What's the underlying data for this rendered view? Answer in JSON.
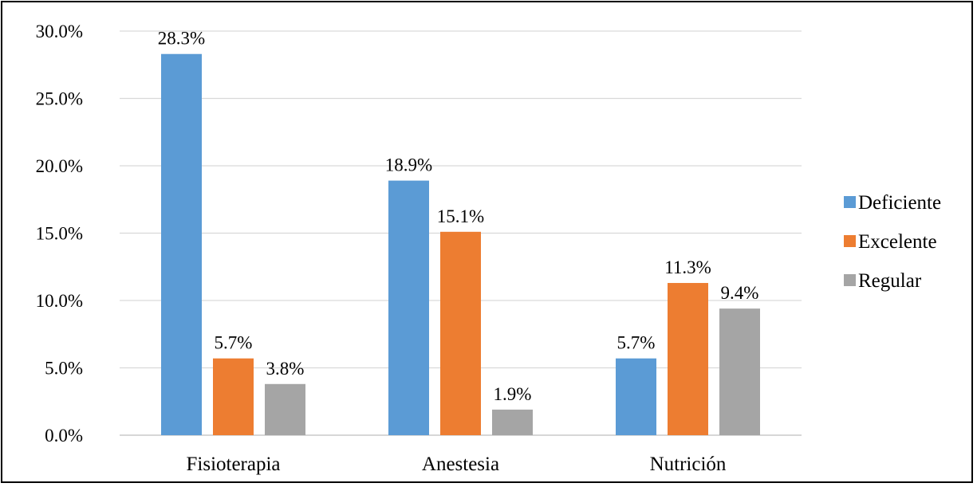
{
  "chart_data": {
    "type": "bar",
    "title": "",
    "xlabel": "",
    "ylabel": "",
    "categories": [
      "Fisioterapia",
      "Anestesia",
      "Nutrición"
    ],
    "series": [
      {
        "name": "Deficiente",
        "color": "#5b9bd5",
        "values": [
          28.3,
          18.9,
          5.7
        ],
        "labels": [
          "28.3%",
          "18.9%",
          "5.7%"
        ]
      },
      {
        "name": "Excelente",
        "color": "#ed7d31",
        "values": [
          5.7,
          15.1,
          11.3
        ],
        "labels": [
          "5.7%",
          "15.1%",
          "11.3%"
        ]
      },
      {
        "name": "Regular",
        "color": "#a5a5a5",
        "values": [
          3.8,
          1.9,
          9.4
        ],
        "labels": [
          "3.8%",
          "1.9%",
          "9.4%"
        ]
      }
    ],
    "ylim": [
      0,
      30
    ],
    "yticks": [
      0,
      5,
      10,
      15,
      20,
      25,
      30
    ],
    "ytick_labels": [
      "0.0%",
      "5.0%",
      "10.0%",
      "15.0%",
      "20.0%",
      "25.0%",
      "30.0%"
    ],
    "grid": true,
    "legend_position": "right"
  }
}
